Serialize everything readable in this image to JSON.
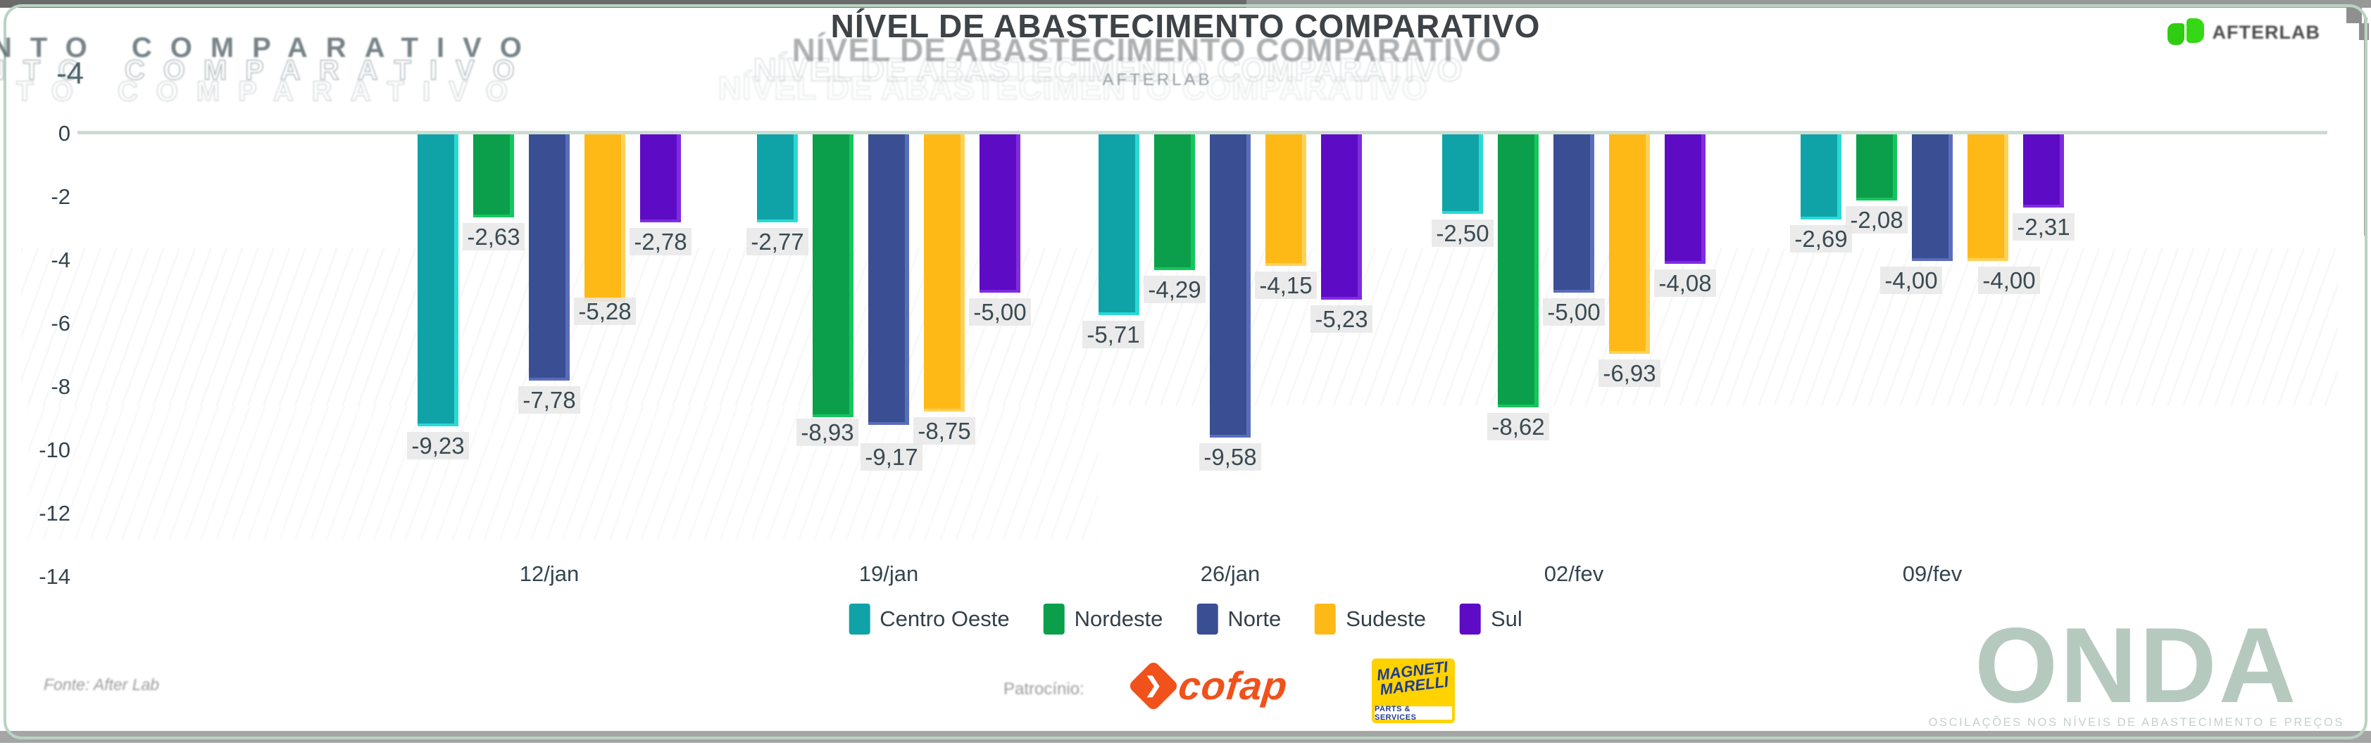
{
  "header": {
    "title": "NÍVEL DE ABASTECIMENTO COMPARATIVO",
    "subtitle": "AFTERLAB",
    "ghost_fragment": "NTO COMPARATIVO",
    "ghost_tick": "-4",
    "brand": "AFTERLAB",
    "brand_icon": "green-leaf-pair-icon"
  },
  "chart_data": {
    "type": "bar",
    "title": "NÍVEL DE ABASTECIMENTO COMPARATIVO",
    "xlabel": "",
    "ylabel": "",
    "ylim": [
      -14,
      0
    ],
    "grid": "zero-line-only",
    "legend_position": "bottom",
    "label_format": "comma-decimal",
    "y_tick_labels": [
      "0",
      "-2",
      "-4",
      "-6",
      "-8",
      "-10",
      "-12",
      "-14"
    ],
    "categories": [
      "12/jan",
      "19/jan",
      "26/jan",
      "02/fev",
      "09/fev"
    ],
    "series": [
      {
        "name": "Centro Oeste",
        "color": "#0fa3a8",
        "edge": "#2bd9d4",
        "values": [
          -9.23,
          -2.77,
          -5.71,
          -2.5,
          -2.69
        ],
        "value_labels": [
          "-9,23",
          "-2,77",
          "-5,71",
          "-2,50",
          "-2,69"
        ]
      },
      {
        "name": "Nordeste",
        "color": "#0c9f4b",
        "edge": "#15c65e",
        "values": [
          -2.63,
          -8.93,
          -4.29,
          -8.62,
          -2.08
        ],
        "value_labels": [
          "-2,63",
          "-8,93",
          "-4,29",
          "-8,62",
          "-2,08"
        ]
      },
      {
        "name": "Norte",
        "color": "#3a4e93",
        "edge": "#5a6dba",
        "values": [
          -7.78,
          -9.17,
          -9.58,
          -5.0,
          -4.0
        ],
        "value_labels": [
          "-7,78",
          "-9,17",
          "-9,58",
          "-5,00",
          "-4,00"
        ]
      },
      {
        "name": "Sudeste",
        "color": "#ffb917",
        "edge": "#ffd257",
        "values": [
          -5.28,
          -8.75,
          -4.15,
          -6.93,
          -4.0
        ],
        "value_labels": [
          "-5,28",
          "-8,75",
          "-4,15",
          "-6,93",
          "-4,00"
        ]
      },
      {
        "name": "Sul",
        "color": "#5e0bc6",
        "edge": "#7f2be0",
        "values": [
          -2.78,
          -5.0,
          -5.23,
          -4.08,
          -2.31
        ],
        "value_labels": [
          "-2,78",
          "-5,00",
          "-5,23",
          "-4,08",
          "-2,31"
        ]
      }
    ]
  },
  "footer": {
    "source": "Fonte: After Lab",
    "sponsor_label": "Patrocínio:",
    "cofap": "cofap",
    "cofap_color": "#f1511b",
    "magneti_line1": "MAGNETI",
    "magneti_line2": "MARELLI",
    "magneti_sub": "PARTS & SERVICES",
    "magneti_yellow": "#ffd200",
    "magneti_blue": "#1f3c90",
    "onda_title": "ONDA",
    "onda_tagline": "OSCILAÇÕES NOS NÍVEIS DE ABASTECIMENTO E PREÇOS",
    "onda_color": "#b6c9bf"
  },
  "theme": {
    "title_color": "#3e4347",
    "axis_text_color": "#33444e",
    "zero_line_color": "#cbddd1",
    "label_bg": "#e8e8e8",
    "border_color": "#b9d3c3"
  }
}
